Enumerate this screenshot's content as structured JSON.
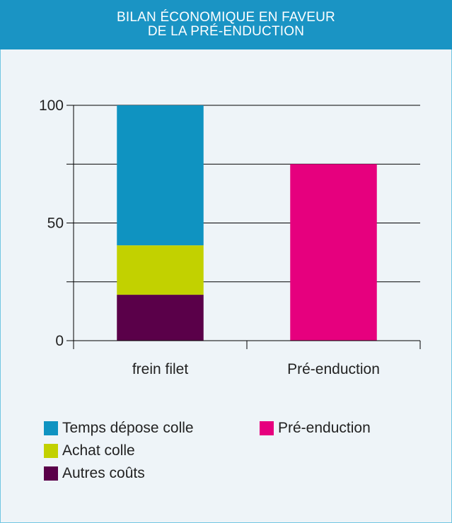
{
  "header": {
    "title_line1": "BILAN ÉCONOMIQUE EN FAVEUR",
    "title_line2": "DE LA PRÉ-ENDUCTION"
  },
  "colors": {
    "header_bg": "#1a94c4",
    "temps_depose_colle": "#0f93c1",
    "achat_colle": "#c2d100",
    "autres_couts": "#5a0049",
    "pre_enduction": "#e6007e"
  },
  "chart_data": {
    "type": "bar",
    "stacked": true,
    "title": "BILAN ÉCONOMIQUE EN FAVEUR DE LA PRÉ-ENDUCTION",
    "categories": [
      "frein filet",
      "Pré-enduction"
    ],
    "ylim": [
      0,
      100
    ],
    "yticks": [
      0,
      50,
      100
    ],
    "gridlines": [
      25,
      50,
      75,
      100
    ],
    "grid": true,
    "legend_position": "bottom",
    "series": [
      {
        "name": "Autres coûts",
        "color": "#5a0049",
        "values": [
          19.5,
          0
        ]
      },
      {
        "name": "Achat colle",
        "color": "#c2d100",
        "values": [
          21,
          0
        ]
      },
      {
        "name": "Temps dépose colle",
        "color": "#0f93c1",
        "values": [
          59.5,
          0
        ]
      },
      {
        "name": "Pré-enduction",
        "color": "#e6007e",
        "values": [
          0,
          75
        ]
      }
    ]
  },
  "legend": {
    "items": [
      {
        "label": "Temps dépose colle",
        "color": "#0f93c1"
      },
      {
        "label": "Pré-enduction",
        "color": "#e6007e"
      },
      {
        "label": "Achat colle",
        "color": "#c2d100"
      },
      {
        "label": "Autres coûts",
        "color": "#5a0049"
      }
    ]
  }
}
